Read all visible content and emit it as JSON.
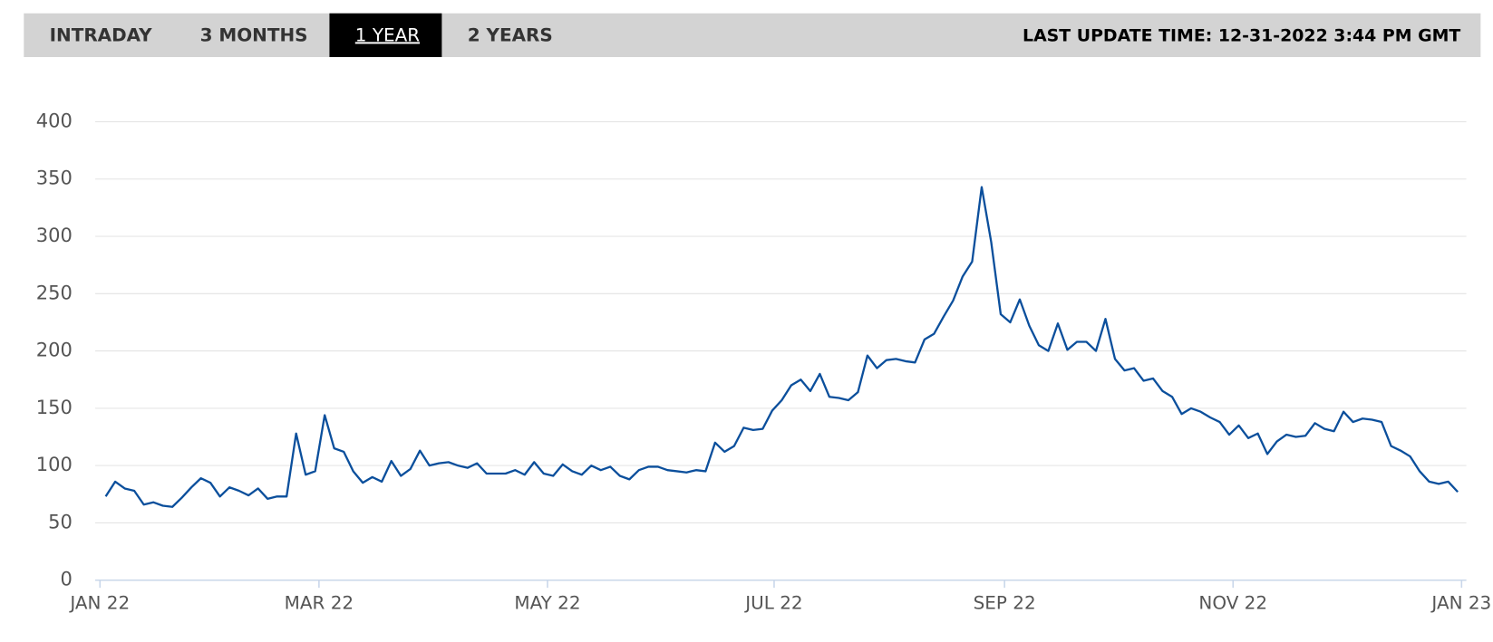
{
  "tabs": [
    "INTRADAY",
    "3 MONTHS",
    "1 YEAR",
    "2 YEARS"
  ],
  "last_update": "LAST UPDATE TIME: 12-31-2022 3:44 PM GMT",
  "chart_data": {
    "type": "line",
    "color": "#0b4f9c",
    "grid": true,
    "values": [
      73,
      86,
      80,
      78,
      66,
      68,
      65,
      64,
      72,
      81,
      89,
      85,
      73,
      81,
      78,
      74,
      80,
      71,
      73,
      73,
      128,
      92,
      95,
      144,
      115,
      112,
      95,
      85,
      90,
      86,
      104,
      91,
      97,
      113,
      100,
      102,
      103,
      100,
      98,
      102,
      93,
      93,
      93,
      96,
      92,
      103,
      93,
      91,
      101,
      95,
      92,
      100,
      96,
      99,
      91,
      88,
      96,
      99,
      99,
      96,
      95,
      94,
      96,
      95,
      120,
      112,
      117,
      133,
      131,
      132,
      148,
      157,
      170,
      175,
      165,
      180,
      160,
      159,
      157,
      164,
      196,
      185,
      192,
      193,
      191,
      190,
      210,
      215,
      230,
      244,
      265,
      278,
      343,
      295,
      232,
      225,
      245,
      222,
      205,
      200,
      224,
      201,
      208,
      208,
      200,
      228,
      193,
      183,
      185,
      174,
      176,
      165,
      160,
      145,
      150,
      147,
      142,
      138,
      127,
      135,
      124,
      128,
      110,
      121,
      127,
      125,
      126,
      137,
      132,
      130,
      147,
      138,
      141,
      140,
      138,
      117,
      113,
      108,
      95,
      86,
      84,
      86,
      77
    ],
    "xlim": [
      -1.1,
      142.9
    ],
    "xticks": [
      {
        "value": -0.6,
        "label": "JAN 22"
      },
      {
        "value": 22.4,
        "label": "MAR 22"
      },
      {
        "value": 46.4,
        "label": "MAY 22"
      },
      {
        "value": 70.2,
        "label": "JUL 22"
      },
      {
        "value": 94.4,
        "label": "SEP 22"
      },
      {
        "value": 118.4,
        "label": "NOV 22"
      },
      {
        "value": 142.4,
        "label": "JAN 23"
      }
    ],
    "ylim": [
      0,
      400
    ],
    "yticks": [
      0,
      50,
      100,
      150,
      200,
      250,
      300,
      350,
      400
    ]
  }
}
